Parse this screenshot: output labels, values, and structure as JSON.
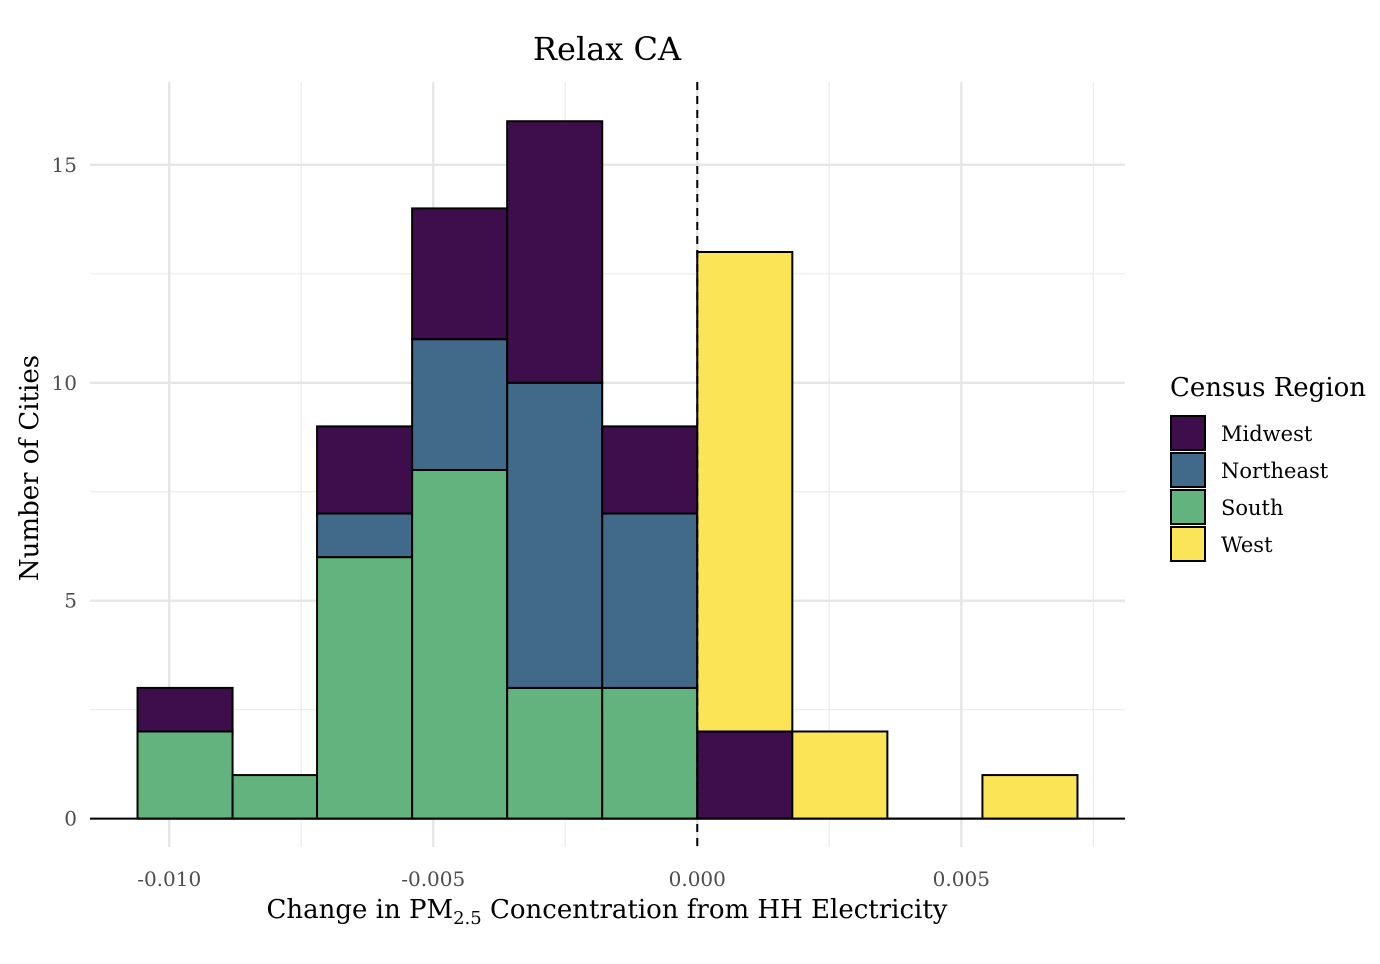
{
  "chart_data": {
    "type": "bar",
    "subtype": "stacked-histogram",
    "title": "Relax CA",
    "xlabel": {
      "prefix": "Change in PM",
      "subscript": "2.5",
      "suffix": " Concentration from HH Electricity"
    },
    "ylabel": "Number of Cities",
    "xlim": [
      -0.0115,
      0.0081
    ],
    "ylim": [
      -0.65,
      16.9
    ],
    "x_ticks": [
      {
        "value": -0.01,
        "label": "-0.010"
      },
      {
        "value": -0.005,
        "label": "-0.005"
      },
      {
        "value": 0.0,
        "label": "0.000"
      },
      {
        "value": 0.005,
        "label": "0.005"
      }
    ],
    "x_minor_ticks": [
      -0.0075,
      -0.0025,
      0.0025,
      0.0075
    ],
    "y_ticks": [
      {
        "value": 0,
        "label": "0"
      },
      {
        "value": 5,
        "label": "5"
      },
      {
        "value": 10,
        "label": "10"
      },
      {
        "value": 15,
        "label": "15"
      }
    ],
    "y_minor_ticks": [
      2.5,
      7.5,
      12.5
    ],
    "bin_width": 0.0018,
    "bins": [
      {
        "x0": -0.0106,
        "x1": -0.0088
      },
      {
        "x0": -0.0088,
        "x1": -0.0072
      },
      {
        "x0": -0.0072,
        "x1": -0.0054
      },
      {
        "x0": -0.0054,
        "x1": -0.0036
      },
      {
        "x0": -0.0036,
        "x1": -0.0018
      },
      {
        "x0": -0.0018,
        "x1": 0.0
      },
      {
        "x0": 0.0,
        "x1": 0.0018
      },
      {
        "x0": 0.0018,
        "x1": 0.0036
      },
      {
        "x0": 0.0036,
        "x1": 0.0054
      },
      {
        "x0": 0.0054,
        "x1": 0.0072
      }
    ],
    "stack_order": [
      "South",
      "Northeast",
      "Midwest",
      "West"
    ],
    "series": [
      {
        "name": "Midwest",
        "color": "#3E0D4C",
        "values": [
          1,
          0,
          2,
          3,
          6,
          2,
          2,
          0,
          0,
          0
        ]
      },
      {
        "name": "Northeast",
        "color": "#41698A",
        "values": [
          0,
          0,
          1,
          3,
          7,
          4,
          0,
          0,
          0,
          0
        ]
      },
      {
        "name": "South",
        "color": "#63B37E",
        "values": [
          2,
          1,
          6,
          8,
          3,
          3,
          0,
          0,
          0,
          0
        ]
      },
      {
        "name": "West",
        "color": "#FBE556",
        "values": [
          0,
          0,
          0,
          0,
          0,
          0,
          11,
          2,
          0,
          1
        ]
      }
    ],
    "reference_line": {
      "x": 0.0,
      "style": "dashed"
    },
    "grid": true,
    "legend": {
      "title": "Census Region",
      "position": "right",
      "items": [
        "Midwest",
        "Northeast",
        "South",
        "West"
      ]
    }
  }
}
